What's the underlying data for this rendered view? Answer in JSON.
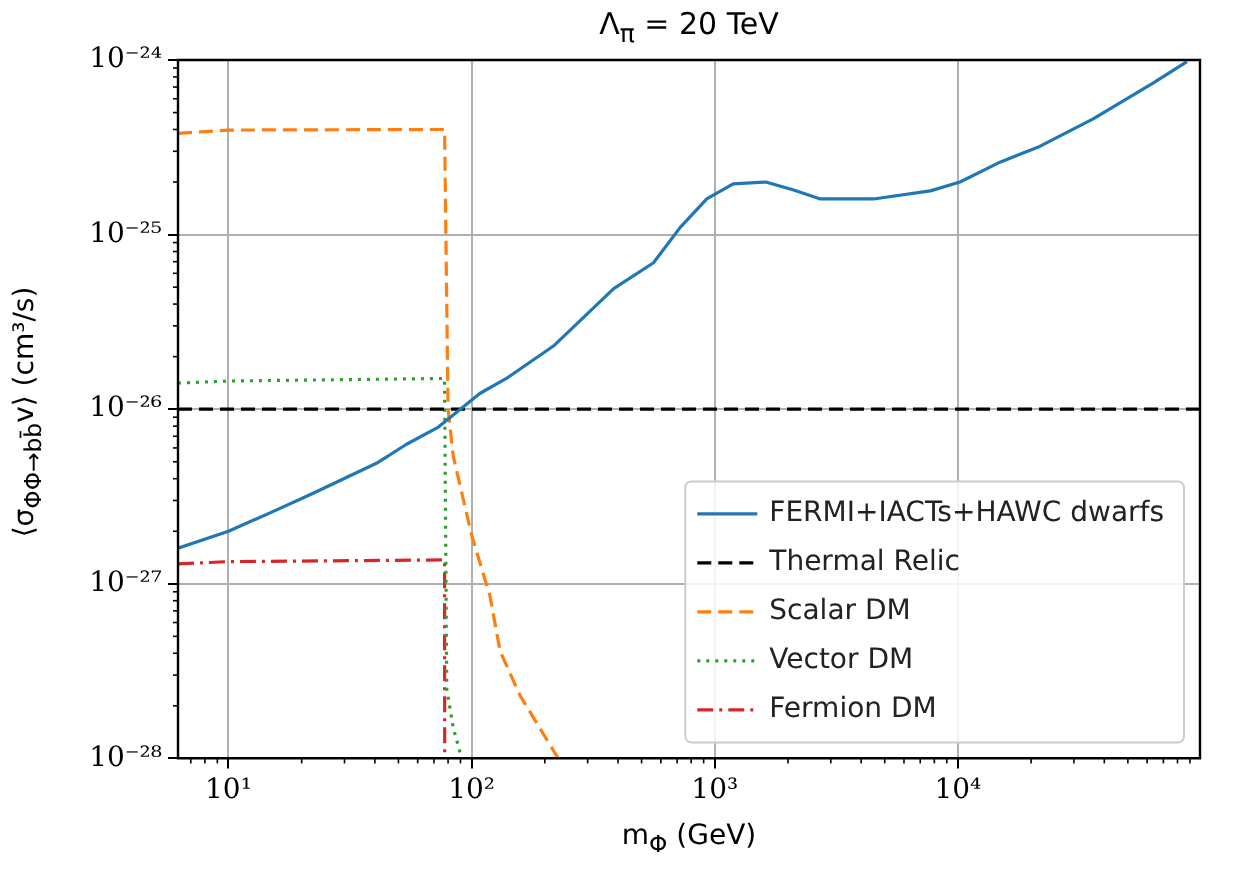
{
  "chart_data": {
    "type": "line",
    "title": "Λ$_{π}$ = 20 TeV",
    "xlabel": "m$_{Φ}$ (GeV)",
    "ylabel": "⟨σ$_{ΦΦ→bb̄}$v⟩ (cm³/s)",
    "log": "xy",
    "grid": true,
    "legend": "bottom right",
    "marker": "none",
    "xlim": [
      6.2,
      99000
    ],
    "xticks": [
      {
        "value": 10,
        "label": "10¹"
      },
      {
        "value": 100,
        "label": "10²"
      },
      {
        "value": 1000,
        "label": "10³"
      },
      {
        "value": 10000,
        "label": "10⁴"
      }
    ],
    "ylim": [
      1e-28,
      1e-24
    ],
    "yticks": [
      {
        "value": 1e-28,
        "label": "10⁻²⁸"
      },
      {
        "value": 1e-27,
        "label": "10⁻²⁷"
      },
      {
        "value": 1e-26,
        "label": "10⁻²⁶"
      },
      {
        "value": 1e-25,
        "label": "10⁻²⁵"
      },
      {
        "value": 1e-24,
        "label": "10⁻²⁴"
      }
    ],
    "series": [
      {
        "name": "FERMI+IACTs+HAWC dwarfs",
        "color": "#1f77b4",
        "line_style": "solid",
        "x": [
          6.2,
          10,
          15.3,
          22.3,
          40.6,
          54,
          73,
          108,
          139,
          217,
          384,
          560,
          721,
          927,
          1190,
          1620,
          2110,
          2720,
          4500,
          7700,
          10200,
          14900,
          21700,
          36000,
          63700,
          87500
        ],
        "values": [
          1.6e-27,
          2e-27,
          2.6e-27,
          3.3e-27,
          4.9e-27,
          6.3e-27,
          7.9e-27,
          1.23e-26,
          1.5e-26,
          2.3e-26,
          4.9e-26,
          6.9e-26,
          1.1e-25,
          1.6e-25,
          1.95e-25,
          2e-25,
          1.8e-25,
          1.6e-25,
          1.6e-25,
          1.78e-25,
          2e-25,
          2.6e-25,
          3.2e-25,
          4.6e-25,
          7.4e-25,
          9.8e-25
        ]
      },
      {
        "name": "Thermal Relic",
        "color": "#000000",
        "line_style": "dashed",
        "x": [
          6.2,
          99000
        ],
        "values": [
          1e-26,
          1e-26
        ]
      },
      {
        "name": "Scalar DM",
        "color": "#ff7f0e",
        "line_style": "dashed",
        "x": [
          6.2,
          10,
          77.4,
          80,
          84,
          100,
          119,
          131,
          158,
          227
        ],
        "values": [
          3.8e-25,
          3.97e-25,
          4e-25,
          1e-26,
          5.4e-27,
          1.9e-27,
          8.5e-28,
          4.1e-28,
          2.3e-28,
          1e-28
        ]
      },
      {
        "name": "Vector DM",
        "color": "#2ca02c",
        "line_style": "dotted",
        "x": [
          6.2,
          10,
          77.4,
          79,
          84,
          91
        ],
        "values": [
          1.41e-26,
          1.45e-26,
          1.5e-26,
          2.5e-28,
          1.5e-28,
          1e-28
        ]
      },
      {
        "name": "Fermion DM",
        "color": "#d62728",
        "line_style": "dashdot",
        "x": [
          6.2,
          10,
          77.4,
          77.5
        ],
        "values": [
          1.3e-27,
          1.34e-27,
          1.37e-27,
          1e-28
        ]
      }
    ]
  }
}
